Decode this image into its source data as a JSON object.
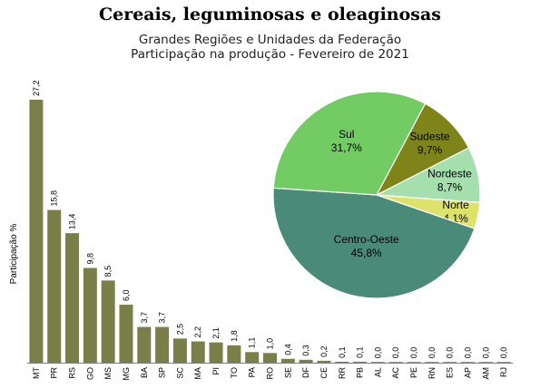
{
  "title": "Cereais, leguminosas e oleaginosas",
  "subtitle_line1": "Grandes Regiões e Unidades da Federação",
  "subtitle_line2": "Participação na produção - Fevereiro de 2021",
  "chart_data": [
    {
      "type": "bar",
      "ylabel": "Participação %",
      "color": "#7a7f4a",
      "categories": [
        "MT",
        "PR",
        "RS",
        "GO",
        "MS",
        "MG",
        "BA",
        "SP",
        "SC",
        "MA",
        "PI",
        "TO",
        "PA",
        "RO",
        "SE",
        "DF",
        "CE",
        "RR",
        "PB",
        "AL",
        "AC",
        "PE",
        "RN",
        "ES",
        "AP",
        "AM",
        "RJ"
      ],
      "values": [
        27.2,
        15.8,
        13.4,
        9.8,
        8.5,
        6.0,
        3.7,
        3.7,
        2.5,
        2.2,
        2.1,
        1.8,
        1.1,
        1.0,
        0.4,
        0.3,
        0.2,
        0.1,
        0.1,
        0.0,
        0.0,
        0.0,
        0.0,
        0.0,
        0.0,
        0.0,
        0.0
      ],
      "value_labels": [
        "27,2",
        "15,8",
        "13,4",
        "9,8",
        "8,5",
        "6,0",
        "3,7",
        "3,7",
        "2,5",
        "2,2",
        "2,1",
        "1,8",
        "1,1",
        "1,0",
        "0,4",
        "0,3",
        "0,2",
        "0,1",
        "0,1",
        "0,0",
        "0,0",
        "0,0",
        "0,0",
        "0,0",
        "0,0",
        "0,0",
        "0,0"
      ],
      "grid": false
    },
    {
      "type": "pie",
      "slices": [
        {
          "name": "Sul",
          "value": 31.7,
          "label": "31,7%",
          "color": "#73cc63"
        },
        {
          "name": "Sudeste",
          "value": 9.7,
          "label": "9,7%",
          "color": "#7e8418"
        },
        {
          "name": "Nordeste",
          "value": 8.7,
          "label": "8,7%",
          "color": "#a5dfae"
        },
        {
          "name": "Norte",
          "value": 4.1,
          "label": "4,1%",
          "color": "#dde36a"
        },
        {
          "name": "Centro-Oeste",
          "value": 45.8,
          "label": "45,8%",
          "color": "#4a8a78"
        }
      ]
    }
  ]
}
